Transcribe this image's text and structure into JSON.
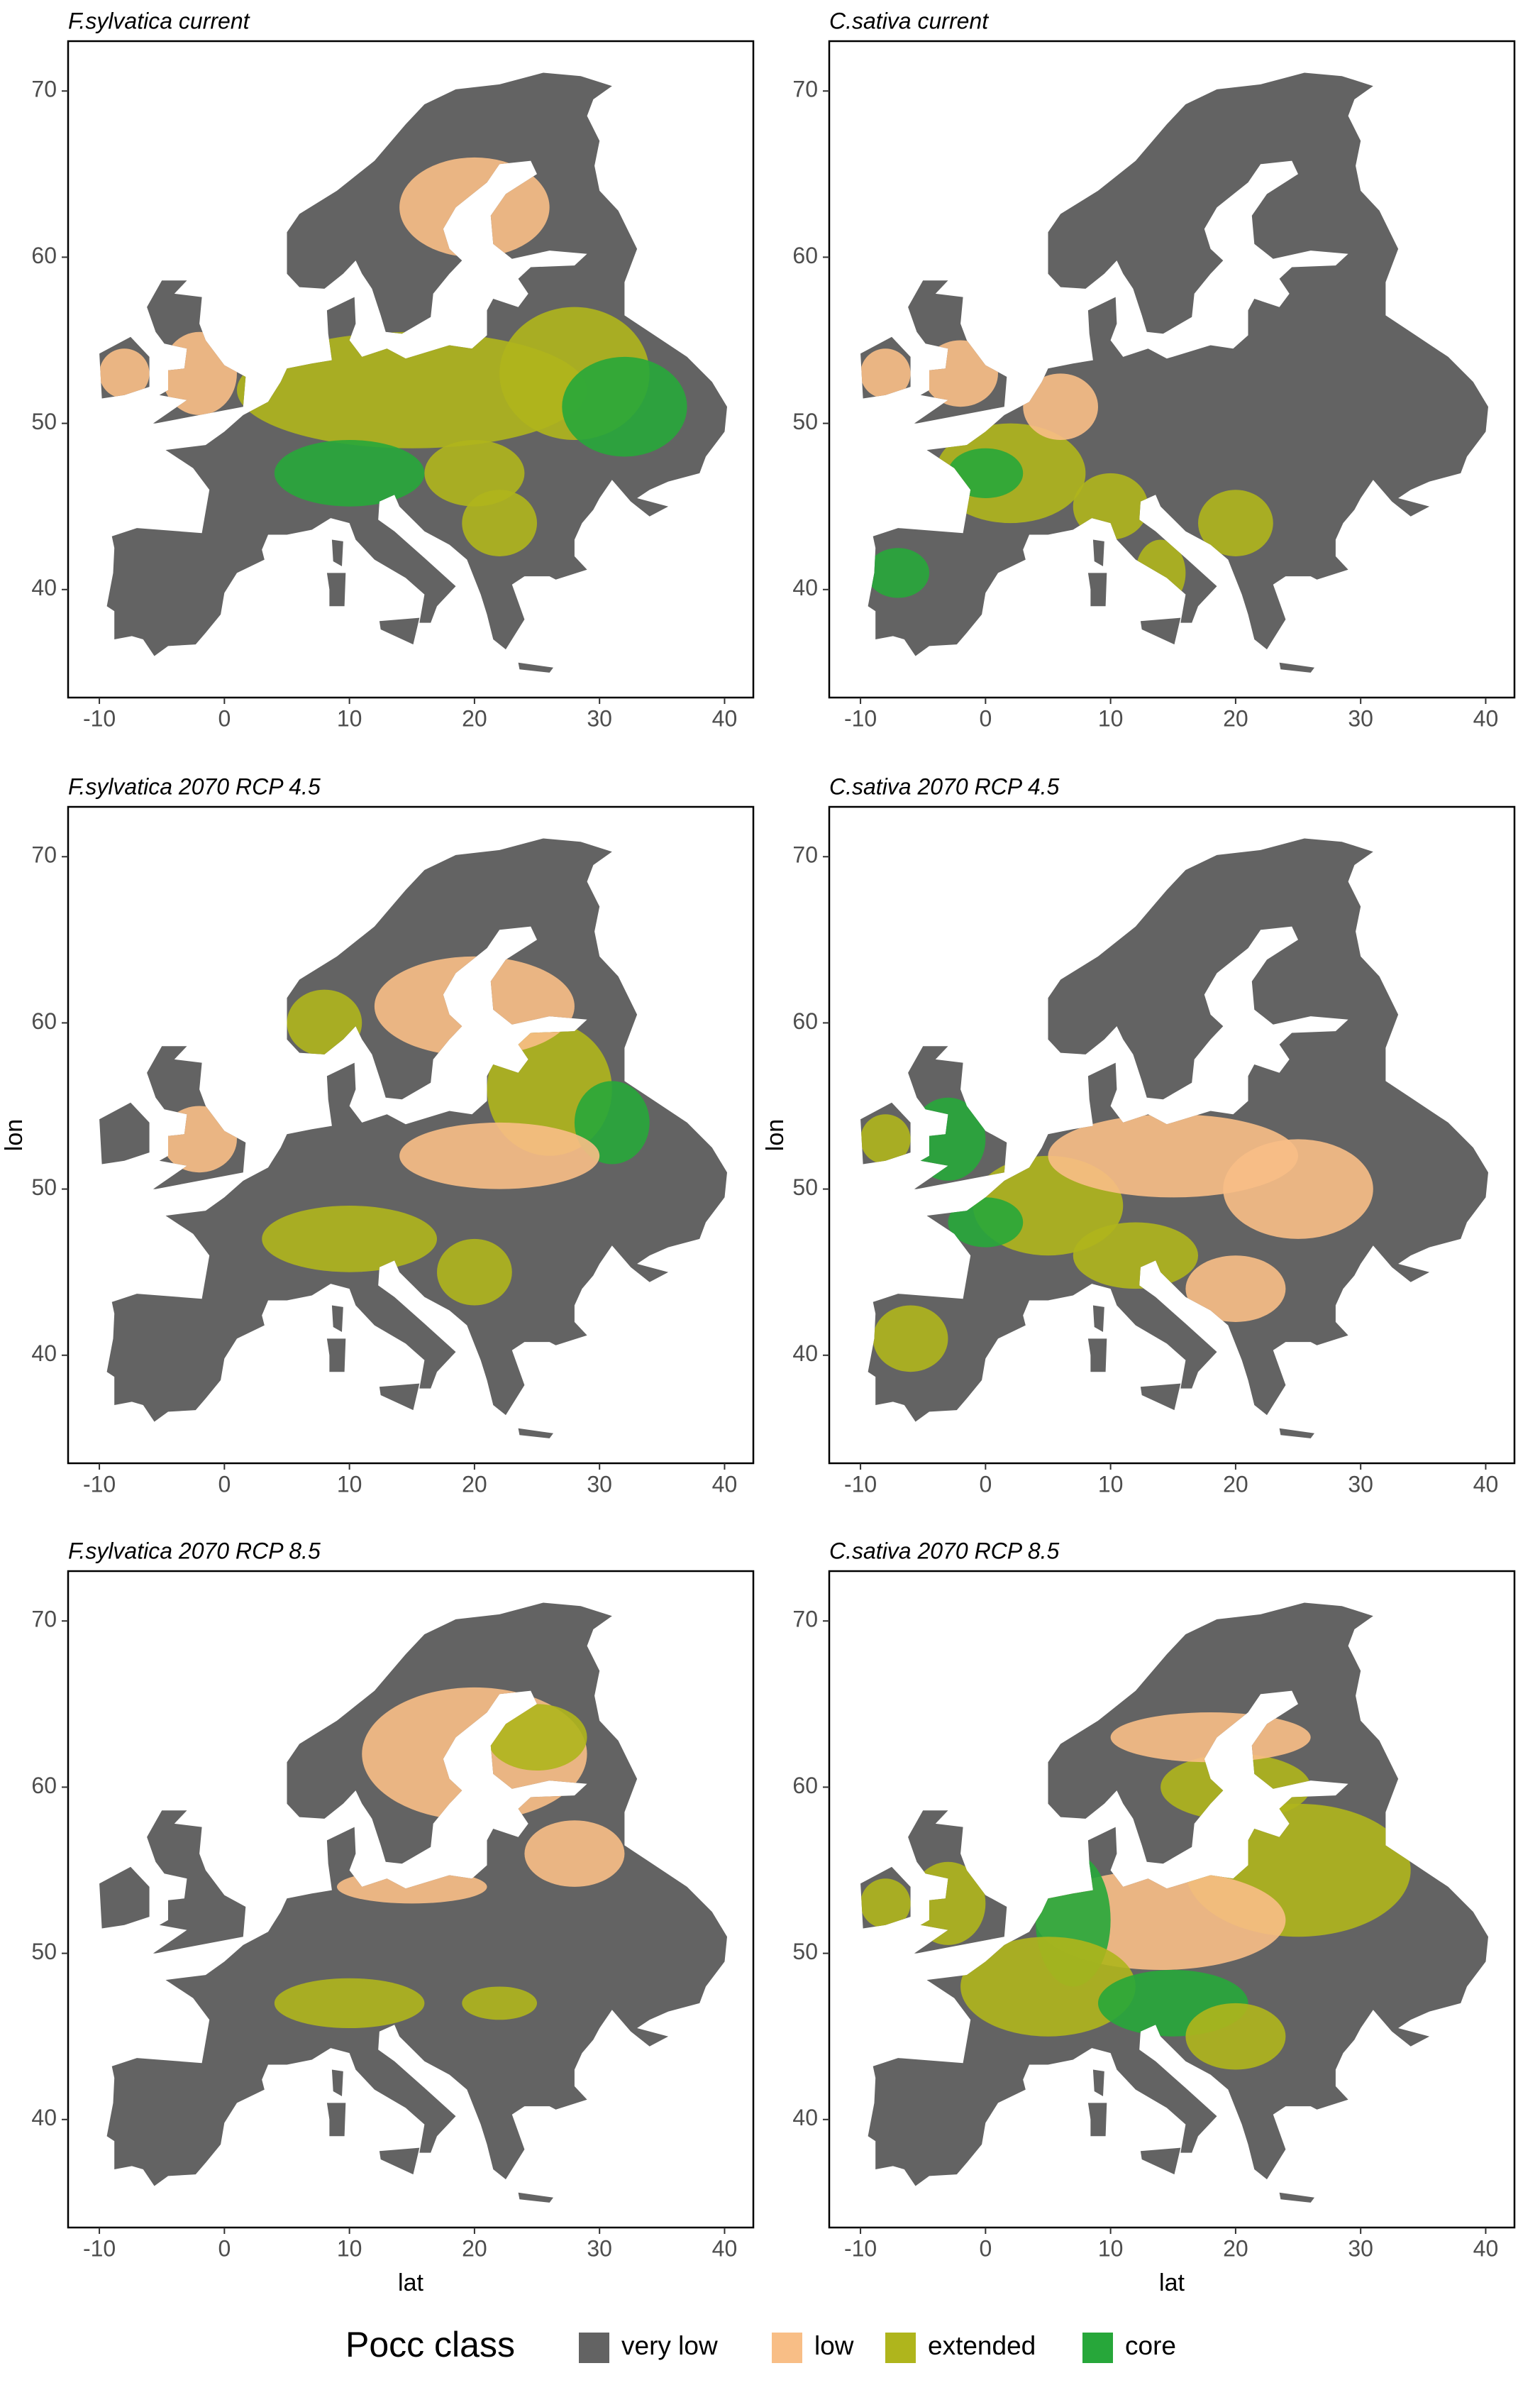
{
  "chart_data": [
    {
      "type": "map",
      "title": "F.sylvatica current",
      "xlim": [
        -12.5,
        42.3
      ],
      "ylim": [
        33.5,
        73.0
      ],
      "xticks": [
        -10,
        0,
        10,
        20,
        30,
        40
      ],
      "yticks": [
        40,
        50,
        60,
        70
      ]
    },
    {
      "type": "map",
      "title": "C.sativa current",
      "xlim": [
        -12.5,
        42.3
      ],
      "ylim": [
        33.5,
        73.0
      ],
      "xticks": [
        -10,
        0,
        10,
        20,
        30,
        40
      ],
      "yticks": [
        40,
        50,
        60,
        70
      ]
    },
    {
      "type": "map",
      "title": "F.sylvatica 2070 RCP 4.5",
      "ylabel": "lon",
      "xlim": [
        -12.5,
        42.3
      ],
      "ylim": [
        33.5,
        73.0
      ],
      "xticks": [
        -10,
        0,
        10,
        20,
        30,
        40
      ],
      "yticks": [
        40,
        50,
        60,
        70
      ]
    },
    {
      "type": "map",
      "title": "C.sativa 2070 RCP 4.5",
      "ylabel": "lon",
      "xlim": [
        -12.5,
        42.3
      ],
      "ylim": [
        33.5,
        73.0
      ],
      "xticks": [
        -10,
        0,
        10,
        20,
        30,
        40
      ],
      "yticks": [
        40,
        50,
        60,
        70
      ]
    },
    {
      "type": "map",
      "title": "F.sylvatica 2070 RCP 8.5",
      "xlabel": "lat",
      "xlim": [
        -12.5,
        42.3
      ],
      "ylim": [
        33.5,
        73.0
      ],
      "xticks": [
        -10,
        0,
        10,
        20,
        30,
        40
      ],
      "yticks": [
        40,
        50,
        60,
        70
      ]
    },
    {
      "type": "map",
      "title": "C.sativa 2070 RCP 8.5",
      "xlabel": "lat",
      "xlim": [
        -12.5,
        42.3
      ],
      "ylim": [
        33.5,
        73.0
      ],
      "xticks": [
        -10,
        0,
        10,
        20,
        30,
        40
      ],
      "yticks": [
        40,
        50,
        60,
        70
      ]
    }
  ],
  "legend": {
    "title": "Pocc class",
    "entries": [
      {
        "name": "very low",
        "color": "#636363"
      },
      {
        "name": "low",
        "color": "#f8be86"
      },
      {
        "name": "extended",
        "color": "#afb51c"
      },
      {
        "name": "core",
        "color": "#27a73a"
      }
    ]
  }
}
